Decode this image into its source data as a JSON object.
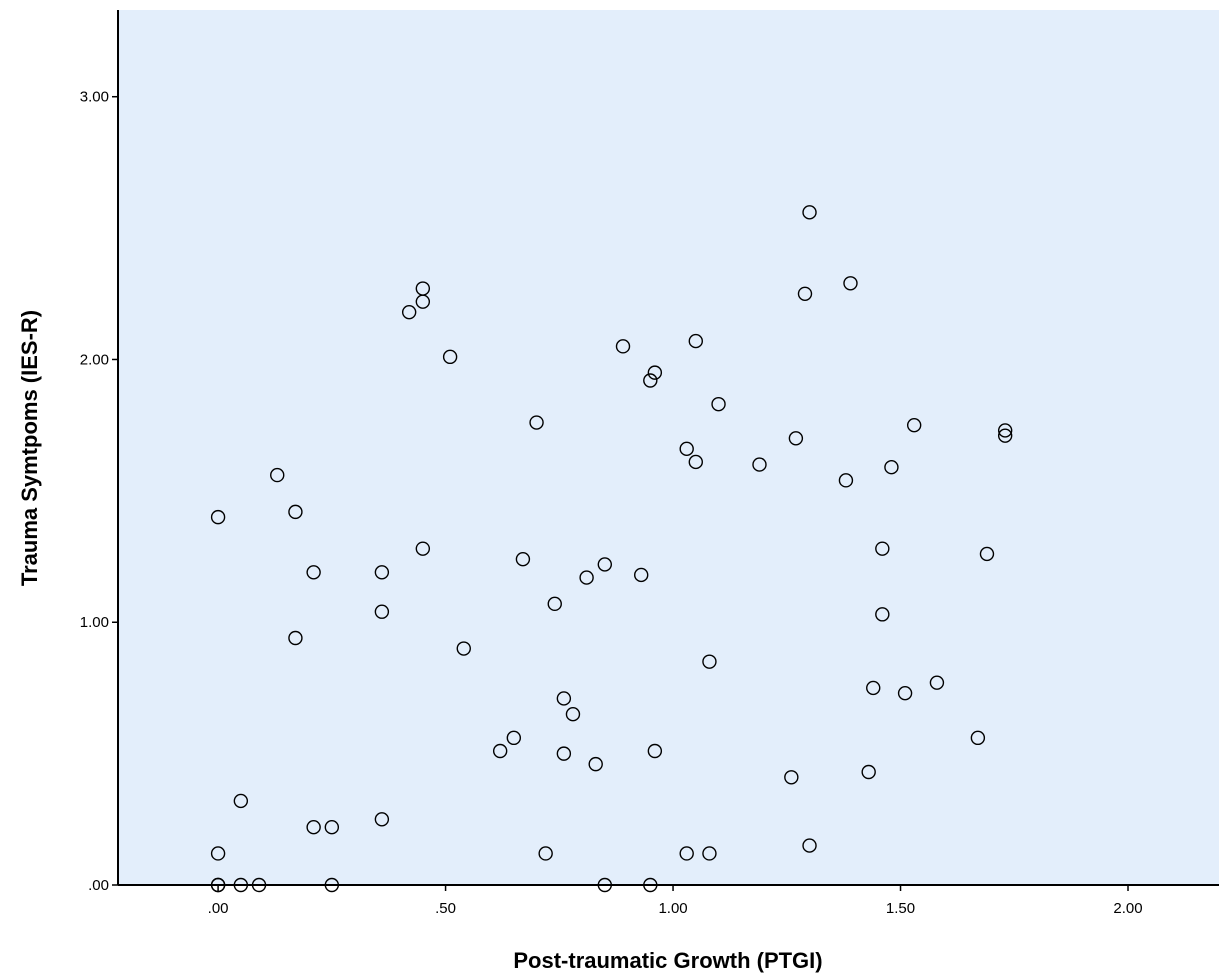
{
  "chart_data": {
    "type": "scatter",
    "title": "",
    "xlabel": "Post-traumatic Growth (PTGI)",
    "ylabel": "Trauma Symtpoms (IES-R)",
    "xlim": [
      -0.22,
      2.2
    ],
    "ylim": [
      0,
      3.33
    ],
    "grid": false,
    "legend": "none",
    "colors": {
      "plot_bg": "#e3eefb",
      "marker_stroke": "#000000",
      "axis": "#000000"
    },
    "marker": "open-circle",
    "x_ticks": [
      {
        "value": 0,
        "label": ".00"
      },
      {
        "value": 0.5,
        "label": ".50"
      },
      {
        "value": 1.0,
        "label": "1.00"
      },
      {
        "value": 1.5,
        "label": "1.50"
      },
      {
        "value": 2.0,
        "label": "2.00"
      }
    ],
    "y_ticks": [
      {
        "value": 0,
        "label": ".00"
      },
      {
        "value": 1.0,
        "label": "1.00"
      },
      {
        "value": 2.0,
        "label": "2.00"
      },
      {
        "value": 3.0,
        "label": "3.00"
      }
    ],
    "points": [
      {
        "x": 0.0,
        "y": 1.4
      },
      {
        "x": 0.0,
        "y": 0.12
      },
      {
        "x": 0.0,
        "y": 0.0
      },
      {
        "x": 0.0,
        "y": 0.0
      },
      {
        "x": 0.05,
        "y": 0.32
      },
      {
        "x": 0.05,
        "y": 0.0
      },
      {
        "x": 0.09,
        "y": 0.0
      },
      {
        "x": 0.13,
        "y": 1.56
      },
      {
        "x": 0.17,
        "y": 1.42
      },
      {
        "x": 0.17,
        "y": 0.94
      },
      {
        "x": 0.21,
        "y": 1.19
      },
      {
        "x": 0.21,
        "y": 0.22
      },
      {
        "x": 0.25,
        "y": 0.22
      },
      {
        "x": 0.25,
        "y": 0.0
      },
      {
        "x": 0.36,
        "y": 1.19
      },
      {
        "x": 0.36,
        "y": 1.04
      },
      {
        "x": 0.36,
        "y": 0.25
      },
      {
        "x": 0.42,
        "y": 2.18
      },
      {
        "x": 0.45,
        "y": 2.27
      },
      {
        "x": 0.45,
        "y": 2.22
      },
      {
        "x": 0.45,
        "y": 1.28
      },
      {
        "x": 0.51,
        "y": 2.01
      },
      {
        "x": 0.54,
        "y": 0.9
      },
      {
        "x": 0.62,
        "y": 0.51
      },
      {
        "x": 0.65,
        "y": 0.56
      },
      {
        "x": 0.67,
        "y": 1.24
      },
      {
        "x": 0.7,
        "y": 1.76
      },
      {
        "x": 0.72,
        "y": 0.12
      },
      {
        "x": 0.74,
        "y": 1.07
      },
      {
        "x": 0.76,
        "y": 0.71
      },
      {
        "x": 0.76,
        "y": 0.5
      },
      {
        "x": 0.78,
        "y": 0.65
      },
      {
        "x": 0.81,
        "y": 1.17
      },
      {
        "x": 0.83,
        "y": 0.46
      },
      {
        "x": 0.85,
        "y": 1.22
      },
      {
        "x": 0.85,
        "y": 0.0
      },
      {
        "x": 0.89,
        "y": 2.05
      },
      {
        "x": 0.93,
        "y": 1.18
      },
      {
        "x": 0.95,
        "y": 1.92
      },
      {
        "x": 0.95,
        "y": 0.0
      },
      {
        "x": 0.96,
        "y": 1.95
      },
      {
        "x": 0.96,
        "y": 0.51
      },
      {
        "x": 1.03,
        "y": 1.66
      },
      {
        "x": 1.03,
        "y": 0.12
      },
      {
        "x": 1.05,
        "y": 2.07
      },
      {
        "x": 1.05,
        "y": 1.61
      },
      {
        "x": 1.08,
        "y": 0.85
      },
      {
        "x": 1.08,
        "y": 0.12
      },
      {
        "x": 1.1,
        "y": 1.83
      },
      {
        "x": 1.19,
        "y": 1.6
      },
      {
        "x": 1.26,
        "y": 0.41
      },
      {
        "x": 1.27,
        "y": 1.7
      },
      {
        "x": 1.29,
        "y": 2.25
      },
      {
        "x": 1.3,
        "y": 2.56
      },
      {
        "x": 1.3,
        "y": 0.15
      },
      {
        "x": 1.38,
        "y": 1.54
      },
      {
        "x": 1.39,
        "y": 2.29
      },
      {
        "x": 1.43,
        "y": 0.43
      },
      {
        "x": 1.44,
        "y": 0.75
      },
      {
        "x": 1.46,
        "y": 1.28
      },
      {
        "x": 1.46,
        "y": 1.03
      },
      {
        "x": 1.48,
        "y": 1.59
      },
      {
        "x": 1.51,
        "y": 0.73
      },
      {
        "x": 1.53,
        "y": 1.75
      },
      {
        "x": 1.58,
        "y": 0.77
      },
      {
        "x": 1.67,
        "y": 0.56
      },
      {
        "x": 1.69,
        "y": 1.26
      },
      {
        "x": 1.73,
        "y": 1.73
      },
      {
        "x": 1.73,
        "y": 1.71
      }
    ]
  }
}
